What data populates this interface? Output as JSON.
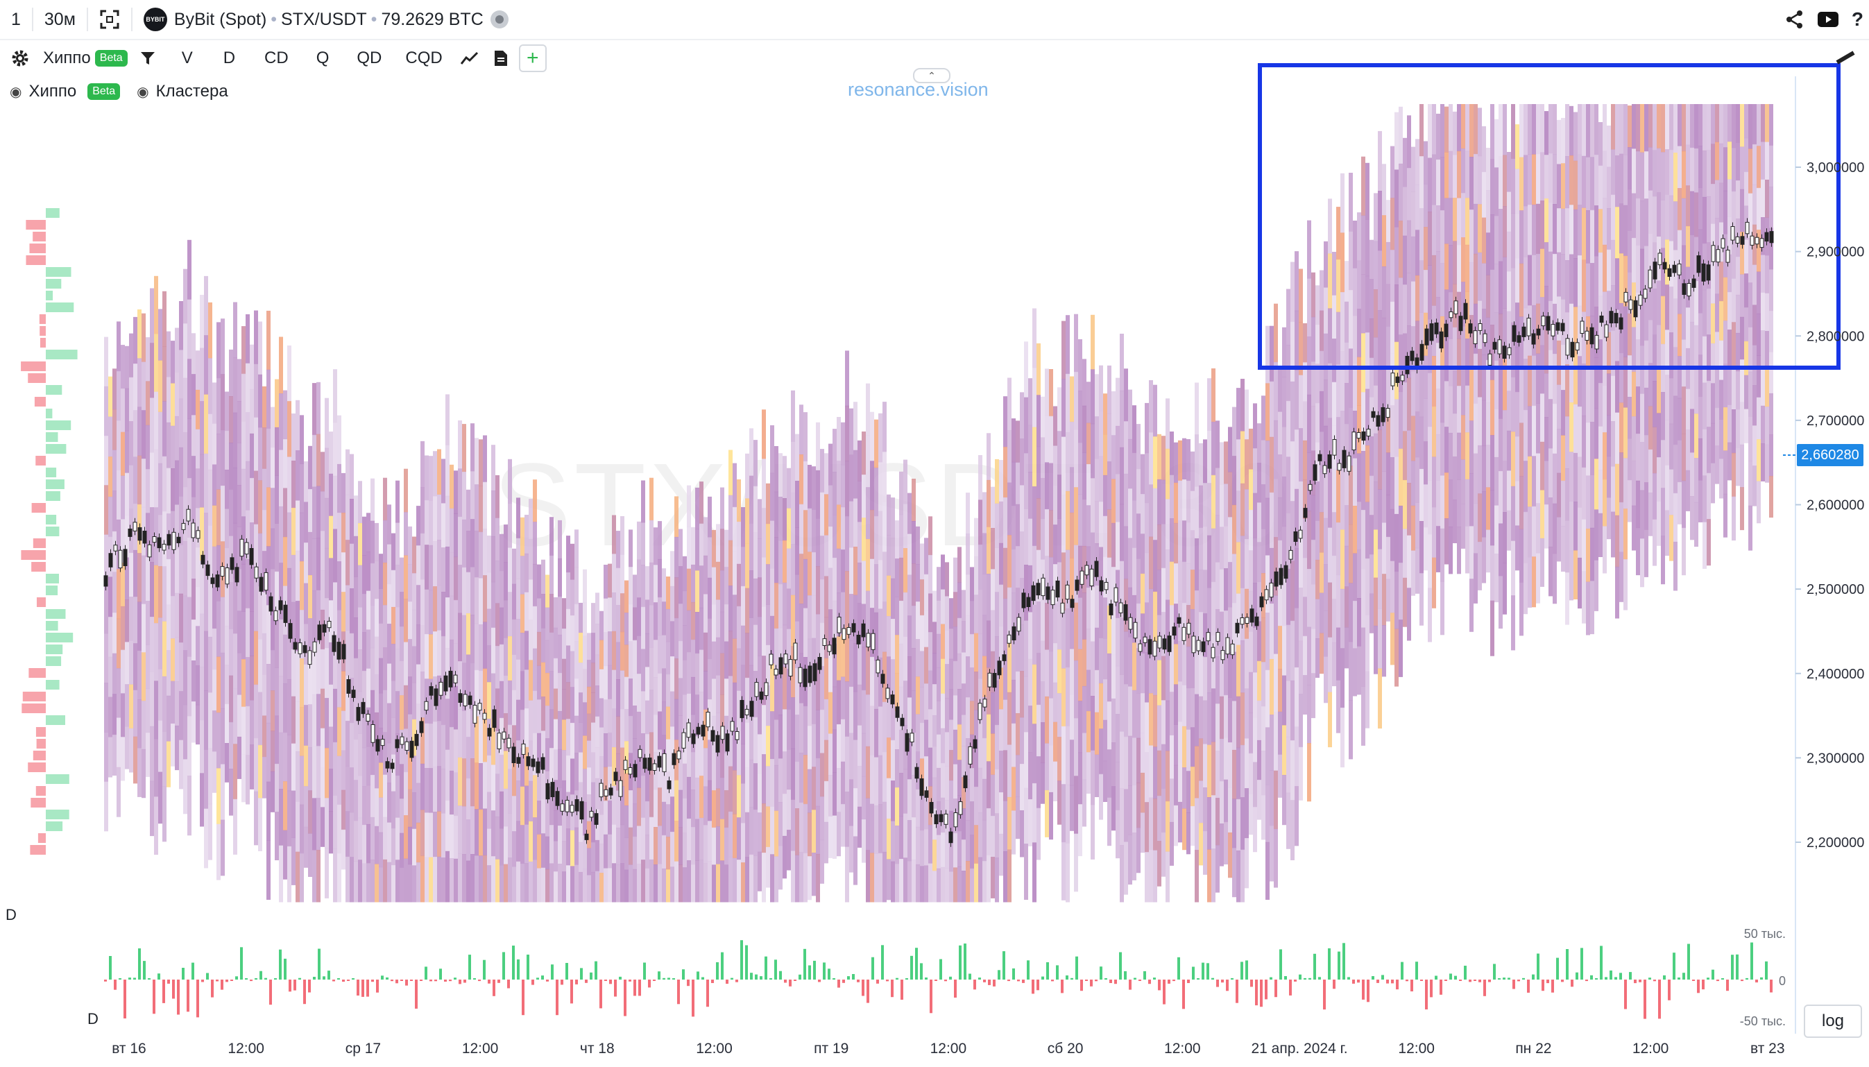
{
  "topbar": {
    "layout_count": "1",
    "interval": "30м",
    "exchange_logo": "BYBIT",
    "exchange": "ByBit (Spot)",
    "symbol": "STX/USDT",
    "extra_price": "79.2629 BTC"
  },
  "toolbar": {
    "indicator_name": "Хиппо",
    "beta": "Beta",
    "buttons": [
      "V",
      "D",
      "CD",
      "Q",
      "QD",
      "CQD"
    ],
    "add_label": "+"
  },
  "legend": {
    "items": [
      {
        "label": "Хиппо",
        "badge": "Beta"
      },
      {
        "label": "Кластера"
      }
    ]
  },
  "site_watermark": "resonance.vision",
  "chart_watermark": "STX/USDT, 30",
  "current_price_tag": "2,660280",
  "log_button": "log",
  "delta_panel_label": "D",
  "delta_axis_label": "D",
  "colors": {
    "accent": "#1e88e5",
    "highlight_rect": "#1736e6",
    "buy": "#4ccf80",
    "sell": "#f26d78",
    "heat_low": "#e8dcee",
    "heat_mid": "#b07cbc",
    "heat_high": "#f2a07a",
    "heat_peak": "#ffe28a"
  },
  "icons": [
    "fullscreen-icon",
    "share-icon",
    "youtube-icon",
    "help-icon",
    "gear-icon",
    "filter-icon",
    "line-chart-icon",
    "document-icon",
    "eye-icon",
    "pencil-icon"
  ],
  "chart_data": {
    "type": "heatmap",
    "price_axis": {
      "ticks": [
        "3,000000",
        "2,900000",
        "2,800000",
        "2,700000",
        "2,600000",
        "2,500000",
        "2,400000",
        "2,300000",
        "2,200000"
      ],
      "tick_values": [
        3.0,
        2.9,
        2.8,
        2.7,
        2.6,
        2.5,
        2.4,
        2.3,
        2.2
      ]
    },
    "delta_axis": {
      "ticks": [
        "50 тыс.",
        "0",
        "-50 тыс."
      ]
    },
    "time_axis": {
      "ticks": [
        "вт 16",
        "12:00",
        "ср 17",
        "12:00",
        "чт 18",
        "12:00",
        "пт 19",
        "12:00",
        "сб 20",
        "12:00",
        "21 апр. 2024 г.",
        "12:00",
        "пн 22",
        "12:00",
        "вт 23"
      ]
    },
    "price_path": [
      2.52,
      2.56,
      2.54,
      2.58,
      2.5,
      2.55,
      2.48,
      2.42,
      2.45,
      2.36,
      2.3,
      2.33,
      2.4,
      2.37,
      2.32,
      2.3,
      2.26,
      2.22,
      2.27,
      2.3,
      2.28,
      2.34,
      2.32,
      2.38,
      2.42,
      2.4,
      2.46,
      2.44,
      2.36,
      2.27,
      2.2,
      2.35,
      2.45,
      2.5,
      2.49,
      2.52,
      2.47,
      2.42,
      2.45,
      2.43,
      2.44,
      2.48,
      2.55,
      2.65,
      2.66,
      2.7,
      2.76,
      2.8,
      2.83,
      2.78,
      2.8,
      2.82,
      2.79,
      2.81,
      2.84,
      2.88,
      2.86,
      2.89,
      2.92,
      2.91
    ]
  }
}
